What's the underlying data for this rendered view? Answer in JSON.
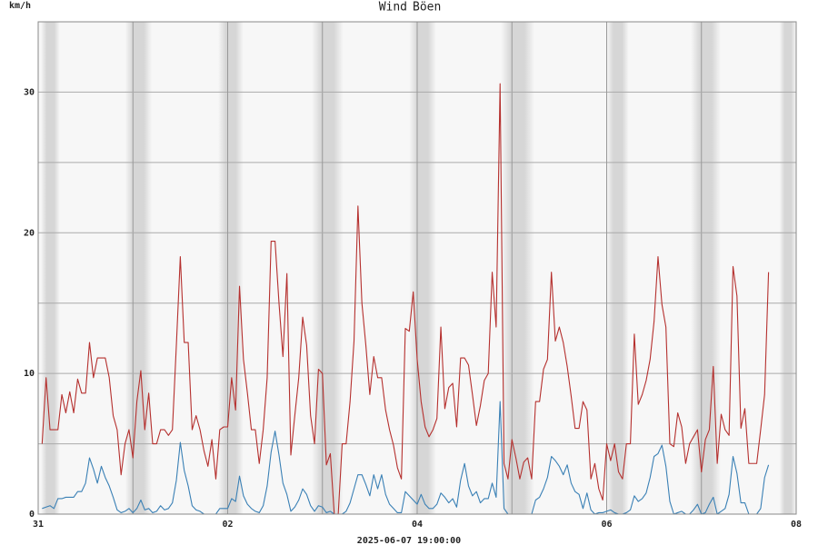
{
  "chart_data": {
    "type": "line",
    "ylabel": "km/h",
    "xlabel": "2025-06-07 19:00:00",
    "x": [
      1,
      2,
      3,
      4,
      5,
      6,
      7,
      8,
      9,
      10,
      11,
      12,
      13,
      14,
      15,
      16,
      17,
      18,
      19,
      20,
      21,
      22,
      23,
      24,
      25,
      26,
      27,
      28,
      29,
      30,
      31,
      32,
      33,
      34,
      35,
      36,
      37,
      38,
      39,
      40,
      41,
      42,
      43,
      44,
      45,
      46,
      47,
      48,
      49,
      50,
      51,
      52,
      53,
      54,
      55,
      56,
      57,
      58,
      59,
      60,
      61,
      62,
      63,
      64,
      65,
      66,
      67,
      68,
      69,
      70,
      71,
      72,
      73,
      74,
      75,
      76,
      77,
      78,
      79,
      80,
      81,
      82,
      83,
      84,
      85,
      86,
      87,
      88,
      89,
      90,
      91,
      92,
      93,
      94,
      95,
      96,
      97,
      98,
      99,
      100,
      101,
      102,
      103,
      104,
      105,
      106,
      107,
      108,
      109,
      110,
      111,
      112,
      113,
      114,
      115,
      116,
      117,
      118,
      119,
      120,
      121,
      122,
      123,
      124,
      125,
      126,
      127,
      128,
      129,
      130,
      131,
      132,
      133,
      134,
      135,
      136,
      137,
      138,
      139,
      140,
      141,
      142,
      143,
      144,
      145,
      146,
      147,
      148,
      149,
      150,
      151,
      152,
      153,
      154,
      155,
      156,
      157,
      158,
      159,
      160,
      161,
      162,
      163,
      164,
      165,
      166,
      167,
      168,
      169,
      170,
      171,
      172,
      173,
      174,
      175,
      176,
      177,
      178,
      179,
      180,
      181,
      182,
      183,
      184,
      185
    ],
    "series": [
      {
        "name": "Wind",
        "color": "#3a80b5",
        "values": [
          0.4,
          0.5,
          0.6,
          0.4,
          1.1,
          1.1,
          1.2,
          1.2,
          1.2,
          1.6,
          1.6,
          2.2,
          4,
          3.2,
          2.2,
          3.4,
          2.6,
          2,
          1.2,
          0.3,
          0.1,
          0.2,
          0.4,
          0.1,
          0.4,
          1,
          0.3,
          0.4,
          0.1,
          0.2,
          0.6,
          0.3,
          0.4,
          0.8,
          2.4,
          5.1,
          3.1,
          2,
          0.6,
          0.3,
          0.2,
          0,
          0,
          0,
          0,
          0.4,
          0.4,
          0.4,
          1.1,
          0.9,
          2.7,
          1.3,
          0.7,
          0.4,
          0.2,
          0.1,
          0.6,
          2,
          4.4,
          5.9,
          4.2,
          2.2,
          1.4,
          0.2,
          0.5,
          1,
          1.8,
          1.4,
          0.6,
          0.2,
          0.6,
          0.5,
          0.1,
          0.2,
          0,
          0,
          0,
          0.2,
          0.8,
          1.8,
          2.8,
          2.8,
          2.1,
          1.3,
          2.8,
          1.8,
          2.8,
          1.4,
          0.7,
          0.4,
          0.1,
          0.1,
          1.6,
          1.3,
          1,
          0.7,
          1.4,
          0.7,
          0.4,
          0.4,
          0.7,
          1.5,
          1.2,
          0.8,
          1.1,
          0.5,
          2.4,
          3.6,
          2,
          1.3,
          1.6,
          0.8,
          1.1,
          1.1,
          2.2,
          1.2,
          8,
          0.4,
          0,
          0,
          0,
          0,
          0,
          0,
          0,
          1,
          1.2,
          1.8,
          2.6,
          4.1,
          3.8,
          3.4,
          2.8,
          3.5,
          2.2,
          1.6,
          1.4,
          0.4,
          1.5,
          0.3,
          0,
          0.1,
          0.1,
          0.2,
          0.3,
          0.1,
          0,
          0,
          0.1,
          0.3,
          1.3,
          0.9,
          1.1,
          1.5,
          2.6,
          4.1,
          4.3,
          4.9,
          3.4,
          0.9,
          0,
          0.1,
          0.2,
          0,
          0,
          0.3,
          0.7,
          0,
          0.1,
          0.7,
          1.2,
          0,
          0.2,
          0.4,
          1.4,
          4.1,
          2.9,
          0.8,
          0.8,
          0,
          0,
          0,
          0.4,
          2.6,
          3.5
        ]
      },
      {
        "name": "Böen",
        "color": "#b5302e",
        "values": [
          5,
          9.7,
          6,
          6,
          6,
          8.5,
          7.2,
          8.7,
          7.2,
          9.6,
          8.6,
          8.6,
          12.2,
          9.7,
          11.1,
          11.1,
          11.1,
          9.7,
          7,
          6,
          2.8,
          5,
          6,
          4,
          8,
          10.2,
          6,
          8.6,
          5,
          5,
          6,
          6,
          5.6,
          6,
          12,
          18.3,
          12.2,
          12.2,
          6,
          7,
          6,
          4.5,
          3.4,
          5.3,
          2.5,
          6,
          6.2,
          6.2,
          9.7,
          7.4,
          16.2,
          11,
          8.6,
          6,
          6,
          3.6,
          6,
          9.7,
          19.4,
          19.4,
          15,
          11.2,
          17.1,
          4.2,
          7,
          9.7,
          14,
          12,
          7,
          5,
          10.3,
          10,
          3.5,
          4.3,
          0,
          0,
          5,
          5,
          8,
          12.3,
          21.9,
          15,
          12,
          8.5,
          11.2,
          9.7,
          9.7,
          7.4,
          6,
          4.9,
          3.3,
          2.5,
          13.2,
          13,
          15.8,
          11,
          8,
          6.2,
          5.5,
          6,
          6.8,
          13.3,
          7.5,
          9,
          9.3,
          6.2,
          11.1,
          11.1,
          10.6,
          8.5,
          6.3,
          7.7,
          9.5,
          10,
          17.2,
          13.3,
          30.6,
          3.6,
          2.5,
          5.3,
          4,
          2.5,
          3.7,
          4,
          2.5,
          8,
          8,
          10.3,
          11,
          17.2,
          12.3,
          13.3,
          12.2,
          10.5,
          8.4,
          6.1,
          6.1,
          8,
          7.4,
          2.5,
          3.6,
          1.8,
          1,
          5,
          3.8,
          5,
          3,
          2.5,
          5,
          5,
          12.8,
          7.8,
          8.5,
          9.5,
          11,
          13.7,
          18.3,
          14.9,
          13.3,
          5,
          4.8,
          7.2,
          6.2,
          3.6,
          5,
          5.5,
          6,
          3,
          5.3,
          6,
          10.5,
          3.6,
          7.1,
          6,
          5.6,
          17.6,
          15.5,
          6.1,
          7.5,
          3.6,
          3.6,
          3.6,
          6,
          8.5,
          17.2
        ]
      }
    ],
    "xlim": [
      0,
      192
    ],
    "xticks": [
      {
        "value": 0,
        "label": "31"
      },
      {
        "value": 48,
        "label": "02"
      },
      {
        "value": 96,
        "label": "04"
      },
      {
        "value": 144,
        "label": "06"
      },
      {
        "value": 192,
        "label": "08"
      }
    ],
    "x_minor_ticks": [
      24,
      72,
      120,
      168
    ],
    "ylim": [
      0,
      35
    ],
    "yticks": [
      0,
      10,
      20,
      30
    ],
    "y_minor_ticks": [
      5,
      15,
      25
    ],
    "night_bands": [
      [
        0.7,
        5.5
      ],
      [
        22,
        28.8
      ],
      [
        45.6,
        52
      ],
      [
        69.3,
        77.3
      ],
      [
        94,
        100.8
      ],
      [
        117.2,
        125.7
      ],
      [
        144,
        149.6
      ],
      [
        165.3,
        172.9
      ],
      [
        187.8,
        192
      ]
    ],
    "grid": true
  }
}
